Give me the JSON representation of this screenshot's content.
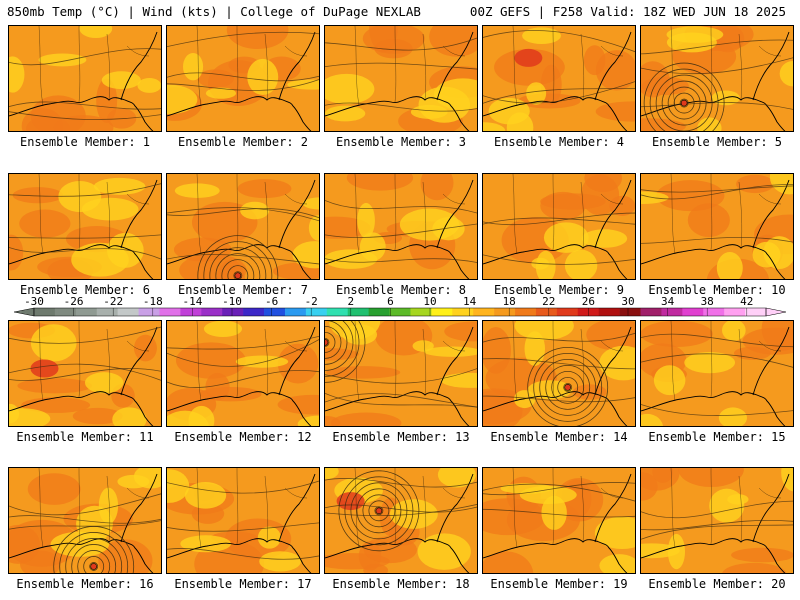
{
  "header": {
    "left": "850mb Temp (°C) | Wind (kts) | College of DuPage NEXLAB",
    "right": "00Z GEFS | F258 Valid: 18Z WED JUN 18 2025"
  },
  "colors": {
    "background_orange": "#f59a1e",
    "warm_orange": "#f07a1a",
    "hot_red": "#e03a1c",
    "yellow": "#ffd21e",
    "contour": "#3a2a10"
  },
  "colorbar": {
    "tick_labels": [
      "-30",
      "-26",
      "-22",
      "-18",
      "-14",
      "-10",
      "-6",
      "-2",
      "2",
      "6",
      "10",
      "14",
      "18",
      "22",
      "26",
      "30",
      "34",
      "38",
      "42"
    ],
    "colors": [
      "#6e7a6e",
      "#7f8a80",
      "#8f9a92",
      "#a8b0ac",
      "#c3c8c8",
      "#c9a0e6",
      "#e070e8",
      "#c040d8",
      "#9a30c8",
      "#6a20b8",
      "#3c28c8",
      "#2050e0",
      "#2a9af0",
      "#38d0f0",
      "#30e0b0",
      "#20c070",
      "#28a030",
      "#5cba28",
      "#a6d620",
      "#fff018",
      "#ffd21e",
      "#ffb41e",
      "#f59a1e",
      "#f07a1a",
      "#e85a1c",
      "#e03a1c",
      "#d01a1a",
      "#b01010",
      "#8a1010",
      "#a0206a",
      "#c02aa0",
      "#e040d0",
      "#f070e8",
      "#ffa0f0",
      "#ffd0f8"
    ]
  },
  "panels": [
    {
      "label": "Ensemble Member: 1",
      "low": false
    },
    {
      "label": "Ensemble Member: 2",
      "low": false
    },
    {
      "label": "Ensemble Member: 3",
      "low": false
    },
    {
      "label": "Ensemble Member: 4",
      "low": false
    },
    {
      "label": "Ensemble Member: 5",
      "low": true,
      "low_pos": [
        0.28,
        0.72
      ]
    },
    {
      "label": "Ensemble Member: 6",
      "low": false
    },
    {
      "label": "Ensemble Member: 7",
      "low": true,
      "low_pos": [
        0.46,
        0.95
      ]
    },
    {
      "label": "Ensemble Member: 8",
      "low": false
    },
    {
      "label": "Ensemble Member: 9",
      "low": false
    },
    {
      "label": "Ensemble Member: 10",
      "low": false
    },
    {
      "label": "Ensemble Member: 11",
      "low": false
    },
    {
      "label": "Ensemble Member: 12",
      "low": false
    },
    {
      "label": "Ensemble Member: 13",
      "low": true,
      "low_pos": [
        0.0,
        0.2
      ]
    },
    {
      "label": "Ensemble Member: 14",
      "low": true,
      "low_pos": [
        0.55,
        0.62
      ]
    },
    {
      "label": "Ensemble Member: 15",
      "low": false
    },
    {
      "label": "Ensemble Member: 16",
      "low": true,
      "low_pos": [
        0.55,
        0.92
      ]
    },
    {
      "label": "Ensemble Member: 17",
      "low": false
    },
    {
      "label": "Ensemble Member: 18",
      "low": true,
      "low_pos": [
        0.35,
        0.4
      ]
    },
    {
      "label": "Ensemble Member: 19",
      "low": false
    },
    {
      "label": "Ensemble Member: 20",
      "low": false
    }
  ]
}
